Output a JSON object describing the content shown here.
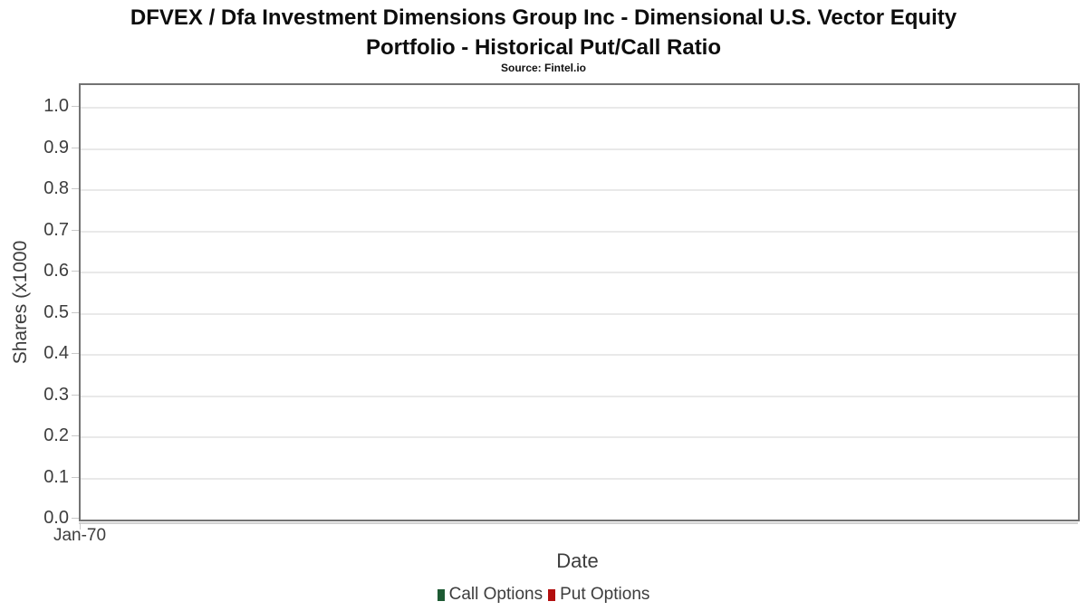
{
  "header": {
    "title_line1": "DFVEX / Dfa Investment Dimensions Group Inc - Dimensional U.S. Vector Equity",
    "title_line2": "Portfolio - Historical Put/Call Ratio",
    "subtitle": "Source: Fintel.io"
  },
  "axes": {
    "xlabel": "Date",
    "ylabel": "Shares (x1000",
    "y_tick_labels": [
      "0.0",
      "0.1",
      "0.2",
      "0.3",
      "0.4",
      "0.5",
      "0.6",
      "0.7",
      "0.8",
      "0.9",
      "1.0"
    ],
    "x_tick_labels": [
      "Jan-70"
    ]
  },
  "legend": {
    "items": [
      {
        "label": "Call Options",
        "color": "#1d5a33"
      },
      {
        "label": "Put Options",
        "color": "#b30f0f"
      }
    ]
  },
  "chart_data": {
    "type": "line",
    "title": "DFVEX / Dfa Investment Dimensions Group Inc - Dimensional U.S. Vector Equity Portfolio - Historical Put/Call Ratio",
    "subtitle": "Source: Fintel.io",
    "xlabel": "Date",
    "ylabel": "Shares (x1000",
    "x_ticks": [
      "Jan-70"
    ],
    "y_ticks": [
      0.0,
      0.1,
      0.2,
      0.3,
      0.4,
      0.5,
      0.6,
      0.7,
      0.8,
      0.9,
      1.0
    ],
    "ylim": [
      0,
      1.055
    ],
    "grid": true,
    "legend_position": "bottom",
    "series": [
      {
        "name": "Call Options",
        "color": "#1d5a33",
        "x": [],
        "values": []
      },
      {
        "name": "Put Options",
        "color": "#b30f0f",
        "x": [],
        "values": []
      }
    ]
  }
}
